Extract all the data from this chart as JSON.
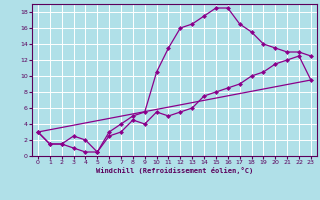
{
  "xlabel": "Windchill (Refroidissement éolien,°C)",
  "background_color": "#b0e0e8",
  "grid_color": "#ffffff",
  "line_color": "#8b008b",
  "spine_color": "#5b005b",
  "xlim": [
    -0.5,
    23.5
  ],
  "ylim": [
    0,
    19
  ],
  "xticks": [
    0,
    1,
    2,
    3,
    4,
    5,
    6,
    7,
    8,
    9,
    10,
    11,
    12,
    13,
    14,
    15,
    16,
    17,
    18,
    19,
    20,
    21,
    22,
    23
  ],
  "yticks": [
    0,
    2,
    4,
    6,
    8,
    10,
    12,
    14,
    16,
    18
  ],
  "line1_x": [
    0,
    1,
    2,
    3,
    4,
    5,
    6,
    7,
    8,
    9,
    10,
    11,
    12,
    13,
    14,
    15,
    16,
    17,
    18,
    19,
    20,
    21,
    22,
    23
  ],
  "line1_y": [
    3,
    1.5,
    1.5,
    1.0,
    0.5,
    0.5,
    3.0,
    4.0,
    5.0,
    5.5,
    10.5,
    13.5,
    16.0,
    16.5,
    17.5,
    18.5,
    18.5,
    16.5,
    15.5,
    14.0,
    13.5,
    13.0,
    13.0,
    12.5
  ],
  "line2_x": [
    0,
    1,
    2,
    3,
    4,
    5,
    6,
    7,
    8,
    9,
    10,
    11,
    12,
    13,
    14,
    15,
    16,
    17,
    18,
    19,
    20,
    21,
    22,
    23
  ],
  "line2_y": [
    3,
    1.5,
    1.5,
    2.5,
    2.0,
    0.5,
    2.5,
    3.0,
    4.5,
    4.0,
    5.5,
    5.0,
    5.5,
    6.0,
    7.5,
    8.0,
    8.5,
    9.0,
    10.0,
    10.5,
    11.5,
    12.0,
    12.5,
    9.5
  ],
  "line3_x": [
    0,
    23
  ],
  "line3_y": [
    3,
    9.5
  ],
  "marker": "D",
  "marker_size": 2,
  "line_width": 0.9,
  "tick_fontsize": 4.5,
  "xlabel_fontsize": 5.0
}
